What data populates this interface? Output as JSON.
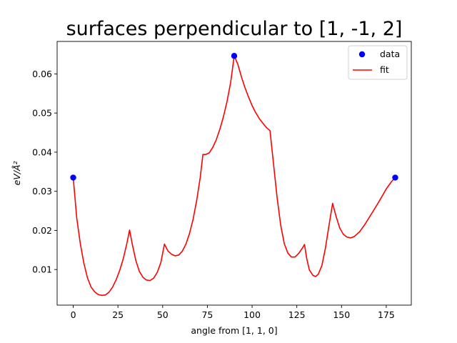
{
  "chart_data": {
    "type": "line",
    "title": "surfaces perpendicular to [1, -1, 2]",
    "xlabel": "angle from [1, 1, 0]",
    "ylabel": "eV/Å²",
    "xlim": [
      -9,
      189
    ],
    "ylim": [
      0.0009,
      0.0683
    ],
    "xticks": [
      0,
      25,
      50,
      75,
      100,
      125,
      150,
      175
    ],
    "yticks": [
      0.01,
      0.02,
      0.03,
      0.04,
      0.05,
      0.06
    ],
    "ytick_labels": [
      "0.01",
      "0.02",
      "0.03",
      "0.04",
      "0.05",
      "0.06"
    ],
    "grid": false,
    "legend_position": "top-right",
    "series": [
      {
        "name": "data",
        "kind": "scatter",
        "color": "#0000ff",
        "x": [
          0,
          90,
          180
        ],
        "y": [
          0.0335,
          0.0646,
          0.0335
        ]
      },
      {
        "name": "fit",
        "kind": "line",
        "color": "#ff0000",
        "x": [
          0,
          2,
          4,
          6,
          8,
          10,
          12,
          14,
          16,
          18,
          20,
          22,
          24,
          26,
          28,
          30,
          31.5,
          33,
          35,
          37,
          39,
          41,
          43,
          45,
          47,
          49,
          51,
          53,
          55,
          57,
          59,
          61,
          63,
          65,
          67,
          69,
          71,
          72.5,
          74,
          76,
          78,
          80,
          82,
          84,
          86,
          88,
          90,
          92,
          94,
          96,
          98,
          100,
          102,
          104,
          106,
          108,
          110,
          112,
          114,
          116,
          118,
          120,
          122,
          124,
          126,
          128,
          129.3,
          130.5,
          132,
          134,
          135.5,
          137,
          139,
          141,
          143,
          145,
          147,
          149,
          151,
          153,
          155,
          157,
          160,
          163,
          166,
          169,
          172,
          175,
          178,
          180
        ],
        "y": [
          0.0335,
          0.023,
          0.0165,
          0.0115,
          0.0078,
          0.0055,
          0.0043,
          0.0036,
          0.0034,
          0.0035,
          0.0042,
          0.0055,
          0.0074,
          0.0098,
          0.0128,
          0.0167,
          0.0201,
          0.0165,
          0.0123,
          0.0095,
          0.008,
          0.0073,
          0.0072,
          0.0078,
          0.0093,
          0.0118,
          0.0165,
          0.0147,
          0.0139,
          0.0135,
          0.0137,
          0.0147,
          0.0165,
          0.0192,
          0.0228,
          0.0276,
          0.0335,
          0.0394,
          0.0394,
          0.0398,
          0.0412,
          0.0432,
          0.0459,
          0.0491,
          0.053,
          0.0578,
          0.0646,
          0.0625,
          0.0593,
          0.0565,
          0.0541,
          0.0519,
          0.0501,
          0.0486,
          0.0474,
          0.0463,
          0.0455,
          0.0369,
          0.0283,
          0.0213,
          0.0166,
          0.0142,
          0.0132,
          0.0132,
          0.0141,
          0.0154,
          0.0164,
          0.0129,
          0.0099,
          0.0085,
          0.0082,
          0.0088,
          0.011,
          0.0155,
          0.0213,
          0.0269,
          0.0235,
          0.0206,
          0.019,
          0.0183,
          0.0181,
          0.0184,
          0.0196,
          0.0215,
          0.0237,
          0.0259,
          0.0282,
          0.0306,
          0.0325,
          0.0335
        ]
      }
    ]
  }
}
